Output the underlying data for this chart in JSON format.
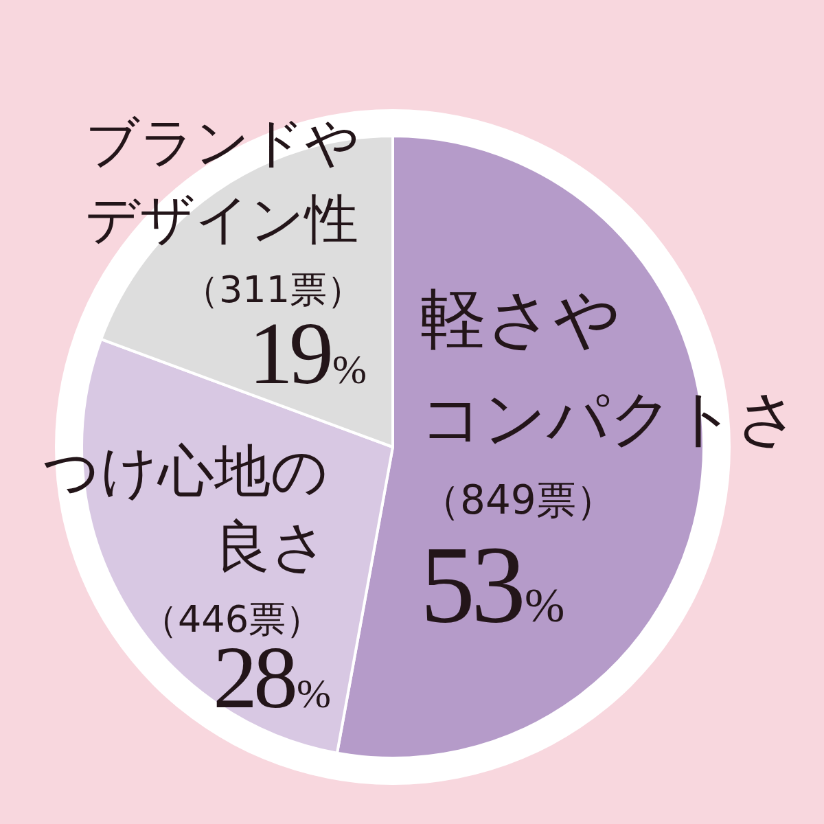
{
  "chart_data": {
    "type": "pie",
    "categories": [
      "軽さやコンパクトさ",
      "つけ心地の良さ",
      "ブランドやデザイン性"
    ],
    "values": [
      849,
      446,
      311
    ],
    "value_labels": [
      "（849票）\n53%",
      "（446票）\n28%",
      "（311票）\n19%"
    ],
    "colors": [
      "#b59bc9",
      "#d8c8e3",
      "#dddddd"
    ]
  }
}
